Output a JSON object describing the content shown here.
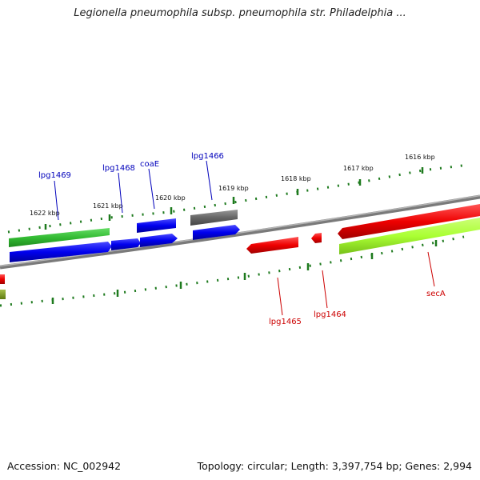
{
  "title": "Legionella pneumophila subsp. pneumophila str. Philadelphia ...",
  "footer": {
    "accession": "Accession: NC_002942",
    "summary": "Topology: circular; Length: 3,397,754 bp; Genes: 2,994"
  },
  "colors": {
    "forward_label": "#0000bb",
    "reverse_label": "#cc0000",
    "tick": "#1e7a1e",
    "backbone": "#808080"
  },
  "ticks": [
    {
      "label": "1622 kbp"
    },
    {
      "label": "1621 kbp"
    },
    {
      "label": "1620 kbp"
    },
    {
      "label": "1619 kbp"
    },
    {
      "label": "1618 kbp"
    },
    {
      "label": "1617 kbp"
    },
    {
      "label": "1616 kbp"
    }
  ],
  "genes": [
    {
      "name": "lpg1469",
      "strand": "+",
      "color": "#0000ee"
    },
    {
      "name": "lpg1468",
      "strand": "+",
      "color": "#0000ee"
    },
    {
      "name": "coaE",
      "strand": "+",
      "color": "#0000ee"
    },
    {
      "name": "lpg1466",
      "strand": "+",
      "color": "#0000ee"
    },
    {
      "name": "lpg1465",
      "strand": "-",
      "color": "#ee0000"
    },
    {
      "name": "lpg1464",
      "strand": "-",
      "color": "#ee0000"
    },
    {
      "name": "secA",
      "strand": "-",
      "color": "#ee0000"
    }
  ],
  "features": [
    {
      "type": "gene",
      "color": "#33cc33"
    },
    {
      "type": "other",
      "color": "#666666"
    },
    {
      "type": "cds",
      "color": "#aaff33"
    }
  ]
}
